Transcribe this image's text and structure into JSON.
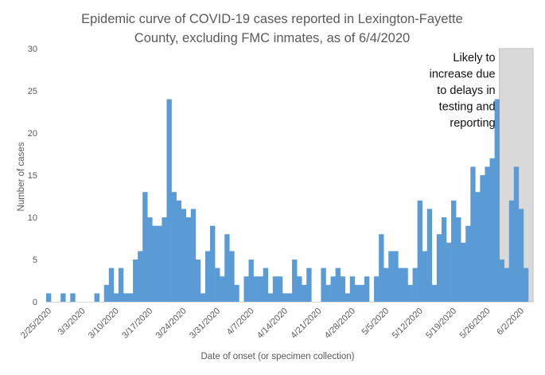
{
  "chart_data": {
    "type": "bar",
    "title_lines": [
      "Epidemic curve of COVID-19 cases reported in Lexington-Fayette",
      "County, excluding FMC inmates, as of 6/4/2020"
    ],
    "xlabel": "Date of onset (or specimen collection)",
    "ylabel": "Number of cases",
    "ylim": [
      0,
      30
    ],
    "yticks": [
      0,
      5,
      10,
      15,
      20,
      25,
      30
    ],
    "grid": false,
    "legend": "none",
    "bar_color": "#5b9bd5",
    "shade_color": "#d9d9d9",
    "x_start": "2/25/2020",
    "x_end": "6/4/2020",
    "x_tick_labels": [
      "2/25/2020",
      "3/3/2020",
      "3/10/2020",
      "3/17/2020",
      "3/24/2020",
      "3/31/2020",
      "4/7/2020",
      "4/14/2020",
      "4/21/2020",
      "4/28/2020",
      "5/5/2020",
      "5/12/2020",
      "5/19/2020",
      "5/26/2020",
      "6/2/2020"
    ],
    "shaded_region": {
      "start": "5/29/2020",
      "end": "6/4/2020",
      "annotation_lines": [
        "Likely to",
        "increase due",
        "to delays in",
        "testing and",
        "reporting"
      ]
    },
    "values": [
      1,
      0,
      0,
      1,
      0,
      1,
      0,
      0,
      0,
      0,
      1,
      0,
      2,
      4,
      1,
      4,
      1,
      1,
      5,
      6,
      13,
      10,
      9,
      9,
      10,
      24,
      13,
      12,
      11,
      10,
      11,
      5,
      1,
      6,
      9,
      4,
      3,
      8,
      6,
      2,
      0,
      3,
      5,
      3,
      3,
      4,
      1,
      3,
      3,
      1,
      1,
      5,
      3,
      2,
      4,
      0,
      0,
      4,
      2,
      3,
      4,
      3,
      1,
      3,
      2,
      2,
      3,
      0,
      3,
      8,
      4,
      6,
      6,
      4,
      4,
      2,
      4,
      12,
      6,
      11,
      2,
      8,
      10,
      7,
      12,
      10,
      7,
      9,
      16,
      13,
      15,
      16,
      17,
      24,
      5,
      4,
      12,
      16,
      11,
      4
    ]
  }
}
